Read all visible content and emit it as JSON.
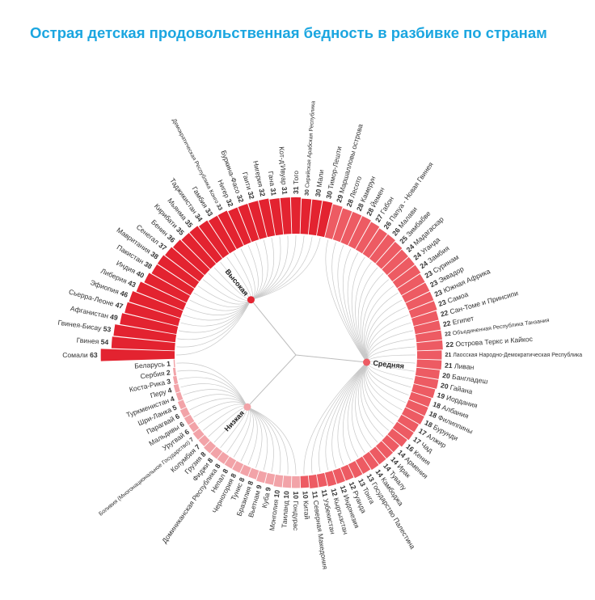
{
  "title": "Острая детская продовольственная бедность в разбивке по странам",
  "colors": {
    "title": "#1ba6e0",
    "high": "#e32330",
    "medium": "#ed5b63",
    "low": "#f2a3a8",
    "link": "#c8c8c8"
  },
  "chart_data": {
    "type": "radial-bar",
    "value_unit": "%",
    "groups": [
      {
        "key": "high",
        "name": "Высокая"
      },
      {
        "key": "medium",
        "name": "Средняя"
      },
      {
        "key": "low",
        "name": "Низкая"
      }
    ],
    "bars": [
      {
        "country": "Сомали",
        "value": 63,
        "group": "high"
      },
      {
        "country": "Гвинея",
        "value": 54,
        "group": "high"
      },
      {
        "country": "Гвинея-Бисау",
        "value": 53,
        "group": "high"
      },
      {
        "country": "Афганистан",
        "value": 49,
        "group": "high"
      },
      {
        "country": "Сьерра-Леоне",
        "value": 47,
        "group": "high"
      },
      {
        "country": "Эфиопия",
        "value": 46,
        "group": "high"
      },
      {
        "country": "Либерия",
        "value": 43,
        "group": "high"
      },
      {
        "country": "Индия",
        "value": 40,
        "group": "high"
      },
      {
        "country": "Пакистан",
        "value": 38,
        "group": "high"
      },
      {
        "country": "Мавритания",
        "value": 38,
        "group": "high"
      },
      {
        "country": "Сенегал",
        "value": 37,
        "group": "high"
      },
      {
        "country": "Бенин",
        "value": 36,
        "group": "high"
      },
      {
        "country": "Кирибати",
        "value": 35,
        "group": "high"
      },
      {
        "country": "Мьянма",
        "value": 35,
        "group": "high"
      },
      {
        "country": "Таджикистан",
        "value": 34,
        "group": "high"
      },
      {
        "country": "Гамбия",
        "value": 33,
        "group": "high"
      },
      {
        "country": "Демократическая Республика Конго",
        "value": 33,
        "group": "high"
      },
      {
        "country": "Нигер",
        "value": 32,
        "group": "high"
      },
      {
        "country": "Буркина-Фасо",
        "value": 32,
        "group": "high"
      },
      {
        "country": "Гаити",
        "value": 32,
        "group": "high"
      },
      {
        "country": "Нигерия",
        "value": 32,
        "group": "high"
      },
      {
        "country": "Гана",
        "value": 31,
        "group": "high"
      },
      {
        "country": "Кот-д'Ивуар",
        "value": 31,
        "group": "high"
      },
      {
        "country": "Того",
        "value": 31,
        "group": "high"
      },
      {
        "country": "Сирийская Арабская Республика",
        "value": 30,
        "group": "high"
      },
      {
        "country": "Мали",
        "value": 30,
        "group": "high"
      },
      {
        "country": "Тимор-Лешти",
        "value": 30,
        "group": "high"
      },
      {
        "country": "Маршалловы острова",
        "value": 29,
        "group": "medium"
      },
      {
        "country": "Лесото",
        "value": 28,
        "group": "medium"
      },
      {
        "country": "Камерун",
        "value": 28,
        "group": "medium"
      },
      {
        "country": "Йемен",
        "value": 28,
        "group": "medium"
      },
      {
        "country": "Габон",
        "value": 27,
        "group": "medium"
      },
      {
        "country": "Папуа - Новая Гвинея",
        "value": 26,
        "group": "medium"
      },
      {
        "country": "Малави",
        "value": 26,
        "group": "medium"
      },
      {
        "country": "Зимбабве",
        "value": 25,
        "group": "medium"
      },
      {
        "country": "Мадагаскар",
        "value": 24,
        "group": "medium"
      },
      {
        "country": "Уганда",
        "value": 24,
        "group": "medium"
      },
      {
        "country": "Замбия",
        "value": 24,
        "group": "medium"
      },
      {
        "country": "Суринам",
        "value": 23,
        "group": "medium"
      },
      {
        "country": "Эквадор",
        "value": 23,
        "group": "medium"
      },
      {
        "country": "Южная Африка",
        "value": 23,
        "group": "medium"
      },
      {
        "country": "Самоа",
        "value": 23,
        "group": "medium"
      },
      {
        "country": "Сан-Томе и Принсипи",
        "value": 22,
        "group": "medium"
      },
      {
        "country": "Египет",
        "value": 22,
        "group": "medium"
      },
      {
        "country": "Объединенная Республика Танзания",
        "value": 22,
        "group": "medium"
      },
      {
        "country": "Острова Теркс и Кайкос",
        "value": 22,
        "group": "medium"
      },
      {
        "country": "Лаосская Народно-Демократическая Республика",
        "value": 21,
        "group": "medium"
      },
      {
        "country": "Ливан",
        "value": 21,
        "group": "medium"
      },
      {
        "country": "Бангладеш",
        "value": 20,
        "group": "medium"
      },
      {
        "country": "Гайана",
        "value": 20,
        "group": "medium"
      },
      {
        "country": "Иордания",
        "value": 19,
        "group": "medium"
      },
      {
        "country": "Албания",
        "value": 18,
        "group": "medium"
      },
      {
        "country": "Филиппины",
        "value": 18,
        "group": "medium"
      },
      {
        "country": "Бурунди",
        "value": 18,
        "group": "medium"
      },
      {
        "country": "Алжир",
        "value": 17,
        "group": "medium"
      },
      {
        "country": "Чад",
        "value": 17,
        "group": "medium"
      },
      {
        "country": "Кения",
        "value": 16,
        "group": "medium"
      },
      {
        "country": "Армения",
        "value": 14,
        "group": "medium"
      },
      {
        "country": "Ирак",
        "value": 14,
        "group": "medium"
      },
      {
        "country": "Тувалу",
        "value": 14,
        "group": "medium"
      },
      {
        "country": "Камбоджа",
        "value": 14,
        "group": "medium"
      },
      {
        "country": "Государство Палестина",
        "value": 13,
        "group": "medium"
      },
      {
        "country": "Тонга",
        "value": 13,
        "group": "medium"
      },
      {
        "country": "Руанда",
        "value": 12,
        "group": "medium"
      },
      {
        "country": "Индонезия",
        "value": 12,
        "group": "medium"
      },
      {
        "country": "Кыргызстан",
        "value": 12,
        "group": "medium"
      },
      {
        "country": "Узбекистан",
        "value": 11,
        "group": "medium"
      },
      {
        "country": "Северная Македония",
        "value": 11,
        "group": "medium"
      },
      {
        "country": "Китай",
        "value": 10,
        "group": "medium"
      },
      {
        "country": "Гондурас",
        "value": 10,
        "group": "low"
      },
      {
        "country": "Таиланд",
        "value": 10,
        "group": "low"
      },
      {
        "country": "Монголия",
        "value": 10,
        "group": "low"
      },
      {
        "country": "Куба",
        "value": 9,
        "group": "low"
      },
      {
        "country": "Вьетнам",
        "value": 9,
        "group": "low"
      },
      {
        "country": "Бразилия",
        "value": 8,
        "group": "low"
      },
      {
        "country": "Тунис",
        "value": 8,
        "group": "low"
      },
      {
        "country": "Черногория",
        "value": 8,
        "group": "low"
      },
      {
        "country": "Непал",
        "value": 8,
        "group": "low"
      },
      {
        "country": "Доминиканская Республика",
        "value": 8,
        "group": "low"
      },
      {
        "country": "Фиджи",
        "value": 8,
        "group": "low"
      },
      {
        "country": "Грузия",
        "value": 8,
        "group": "low"
      },
      {
        "country": "Колумбия",
        "value": 7,
        "group": "low"
      },
      {
        "country": "Боливия (Многонациональное Государство)",
        "value": 7,
        "group": "low"
      },
      {
        "country": "Уругвай",
        "value": 6,
        "group": "low"
      },
      {
        "country": "Мальдивы",
        "value": 6,
        "group": "low"
      },
      {
        "country": "Парагвай",
        "value": 6,
        "group": "low"
      },
      {
        "country": "Шри-Ланка",
        "value": 5,
        "group": "low"
      },
      {
        "country": "Туркменистан",
        "value": 4,
        "group": "low"
      },
      {
        "country": "Перу",
        "value": 4,
        "group": "low"
      },
      {
        "country": "Коста-Рика",
        "value": 3,
        "group": "low"
      },
      {
        "country": "Сербия",
        "value": 2,
        "group": "low"
      },
      {
        "country": "Беларусь",
        "value": 1,
        "group": "low"
      }
    ]
  }
}
